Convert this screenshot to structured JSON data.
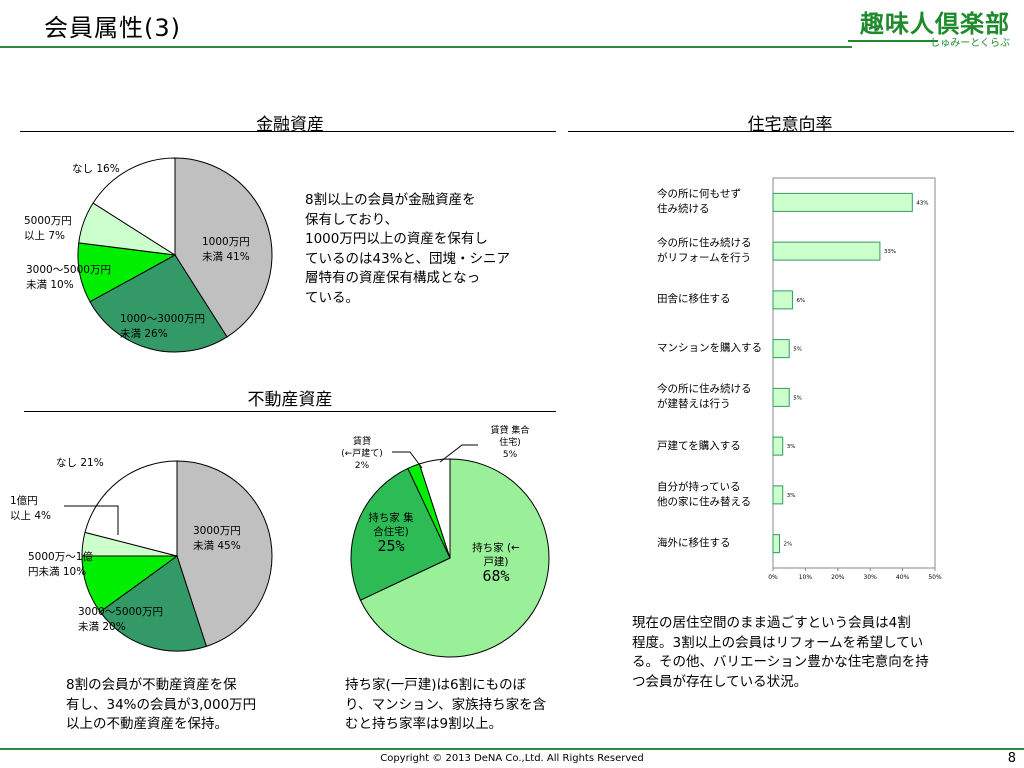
{
  "page": {
    "title": "会員属性(3)",
    "logo_text": "趣味人倶楽部",
    "logo_sub": "しゅみーとくらぶ",
    "copyright": "Copyright © 2013 DeNA Co.,Ltd. All Rights Reserved",
    "page_number": "8"
  },
  "sections": {
    "financial_title": "金融資産",
    "housing_title": "住宅意向率",
    "realestate_title": "不動産資産"
  },
  "notes": {
    "financial": [
      "8割以上の会員が金融資産を",
      "保有しており、",
      "1000万円以上の資産を保有し",
      "ているのは43%と、団塊・シニア",
      "層特有の資産保有構成となっ",
      "ている。"
    ],
    "realestate": [
      "8割の会員が不動産資産を保",
      "有し、34%の会員が3,000万円",
      "以上の不動産資産を保持。"
    ],
    "housing_type": [
      "持ち家(一戸建)は6割にものぼ",
      "り、マンション、家族持ち家を含",
      "むと持ち家率は9割以上。"
    ],
    "housing_intent": [
      "現在の居住空間のまま過ごすという会員は4割",
      "程度。3割以上の会員はリフォームを希望してい",
      "る。その他、バリエーション豊かな住宅意向を持",
      "つ会員が存在している状況。"
    ]
  },
  "chart_data": [
    {
      "type": "pie",
      "title": "金融資産",
      "categories": [
        "1000万円未満",
        "1000～3000万円未満",
        "3000～5000万円未満",
        "5000万円以上",
        "なし"
      ],
      "values": [
        41,
        26,
        10,
        7,
        16
      ],
      "colors": [
        "#c0c0c0",
        "#339966",
        "#00ee00",
        "#ccffcc",
        "#ffffff"
      ],
      "labels": [
        [
          "1000万円",
          "未満  41%"
        ],
        [
          "1000～3000万円",
          "未満  26%"
        ],
        [
          "3000～5000万円",
          "未満 10%"
        ],
        [
          "5000万円",
          "以上   7%"
        ],
        [
          "なし 16%"
        ]
      ]
    },
    {
      "type": "pie",
      "title": "不動産資産",
      "categories": [
        "3000万円未満",
        "3000～5000万円未満",
        "5000万～1億円未満",
        "1億円以上",
        "なし"
      ],
      "values": [
        45,
        20,
        10,
        4,
        21
      ],
      "colors": [
        "#c0c0c0",
        "#339966",
        "#00ee00",
        "#ccffcc",
        "#ffffff"
      ],
      "labels": [
        [
          "3000万円",
          "未満  45%"
        ],
        [
          "3000～5000万円",
          "未満  20%"
        ],
        [
          "5000万～1億",
          "円未満  10%"
        ],
        [
          "1億円",
          "以上  4%"
        ],
        [
          "なし  21%"
        ]
      ]
    },
    {
      "type": "pie",
      "categories": [
        "持ち家（一戸建）",
        "持ち家（集合住宅）",
        "賃貸（一戸建て）",
        "賃貸（集合住宅）"
      ],
      "values": [
        68,
        25,
        2,
        5
      ],
      "colors": [
        "#99f099",
        "#2dbb55",
        "#00ee00",
        "#ffffff"
      ],
      "labels": [
        [
          "持ち家 (←",
          "戸建)",
          "68%"
        ],
        [
          "持ち家  集",
          "合住宅)",
          "25%"
        ],
        [
          "賃貸",
          "(←戸建て)",
          "2%"
        ],
        [
          "賃貸  集合",
          "住宅)",
          "5%"
        ]
      ]
    },
    {
      "type": "bar",
      "orientation": "horizontal",
      "title": "住宅意向率",
      "categories": [
        [
          "今の所に何もせず",
          "住み続ける"
        ],
        [
          "今の所に住み続ける",
          "がリフォームを行う"
        ],
        [
          "田舎に移住する"
        ],
        [
          "マンションを購入する"
        ],
        [
          "今の所に住み続ける",
          "が建替えは行う"
        ],
        [
          "戸建てを購入する"
        ],
        [
          "自分が持っている",
          "他の家に住み替える"
        ],
        [
          "海外に移住する"
        ]
      ],
      "values": [
        43,
        33,
        6,
        5,
        5,
        3,
        3,
        2
      ],
      "value_labels": [
        "43%",
        "33%",
        "6%",
        "5%",
        "5%",
        "3%",
        "3%",
        "2%"
      ],
      "xlim": [
        0,
        50
      ],
      "ticks": [
        "0%",
        "10%",
        "20%",
        "30%",
        "40%",
        "50%"
      ],
      "bar_color": "#ccffcc",
      "bar_edge": "#339966"
    }
  ]
}
